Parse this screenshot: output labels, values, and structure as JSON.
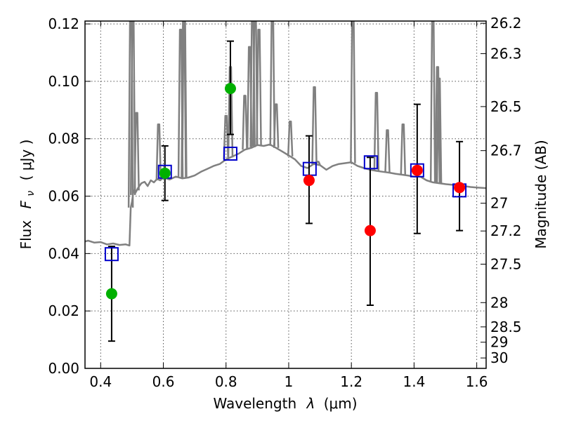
{
  "chart_data": {
    "type": "scatter",
    "xlabel_text": "Wavelength",
    "xlabel_lambda": "λ",
    "xlabel_unit": "(μm)",
    "ylabel_text": "Flux",
    "ylabel_f": "F",
    "ylabel_nu": "ν",
    "ylabel_unit": "( μJy )",
    "y2label": "Magnitude (AB)",
    "xlim": [
      0.35,
      1.63
    ],
    "ylim": [
      0.0,
      0.121
    ],
    "x_ticks": [
      "0.4",
      "0.6",
      "0.8",
      "1",
      "1.2",
      "1.4",
      "1.6"
    ],
    "y_ticks": [
      "0.00",
      "0.02",
      "0.04",
      "0.06",
      "0.08",
      "0.10",
      "0.12"
    ],
    "mag_ticks": [
      "26.2",
      "26.3",
      "26.5",
      "26.7",
      "27",
      "27.2",
      "27.5",
      "28",
      "28.5",
      "29",
      "30"
    ],
    "grid": true,
    "colors": {
      "model": "#808080",
      "observed_green": "#00b000",
      "observed_red": "#ff0000",
      "model_box": "#0000cc",
      "errorbar": "#000000"
    },
    "series": [
      {
        "name": "observed (green)",
        "x": [
          0.435,
          0.605,
          0.814
        ],
        "y": [
          0.026,
          0.068,
          0.0975
        ],
        "yerr_low": [
          0.0095,
          0.0585,
          0.0815
        ],
        "yerr_high": [
          0.0425,
          0.0775,
          0.114
        ]
      },
      {
        "name": "observed (red)",
        "x": [
          1.065,
          1.26,
          1.41,
          1.545
        ],
        "y": [
          0.0655,
          0.048,
          0.069,
          0.063
        ],
        "yerr_low": [
          0.0505,
          0.022,
          0.047,
          0.048
        ],
        "yerr_high": [
          0.081,
          0.0735,
          0.092,
          0.079
        ]
      },
      {
        "name": "model photometry",
        "x": [
          0.435,
          0.605,
          0.814,
          1.067,
          1.262,
          1.41,
          1.545
        ],
        "y": [
          0.0398,
          0.0685,
          0.0748,
          0.0695,
          0.0718,
          0.069,
          0.062
        ]
      },
      {
        "name": "model spectrum",
        "x": [
          0.35,
          0.36,
          0.38,
          0.4,
          0.42,
          0.44,
          0.46,
          0.48,
          0.492,
          0.496,
          0.5,
          0.505,
          0.51,
          0.52,
          0.53,
          0.54,
          0.55,
          0.56,
          0.57,
          0.58,
          0.59,
          0.6,
          0.62,
          0.64,
          0.66,
          0.68,
          0.7,
          0.72,
          0.74,
          0.76,
          0.78,
          0.8,
          0.82,
          0.84,
          0.86,
          0.88,
          0.9,
          0.92,
          0.94,
          0.96,
          0.98,
          1.0,
          1.02,
          1.04,
          1.06,
          1.08,
          1.1,
          1.12,
          1.14,
          1.16,
          1.18,
          1.2,
          1.22,
          1.24,
          1.26,
          1.28,
          1.3,
          1.32,
          1.34,
          1.36,
          1.38,
          1.4,
          1.42,
          1.44,
          1.46,
          1.48,
          1.5,
          1.52,
          1.54,
          1.56,
          1.58,
          1.6,
          1.63
        ],
        "y": [
          0.0442,
          0.0445,
          0.0438,
          0.044,
          0.0432,
          0.0435,
          0.043,
          0.0432,
          0.0428,
          0.056,
          0.058,
          0.062,
          0.061,
          0.063,
          0.0645,
          0.065,
          0.0635,
          0.0655,
          0.0648,
          0.066,
          0.0655,
          0.0665,
          0.0658,
          0.0668,
          0.0662,
          0.0665,
          0.0672,
          0.0685,
          0.0695,
          0.0705,
          0.0712,
          0.0728,
          0.0738,
          0.0748,
          0.0762,
          0.0768,
          0.0778,
          0.0775,
          0.078,
          0.0768,
          0.0755,
          0.0742,
          0.0728,
          0.0705,
          0.0698,
          0.0712,
          0.0708,
          0.0692,
          0.0705,
          0.0712,
          0.0715,
          0.0718,
          0.0705,
          0.0698,
          0.0692,
          0.0688,
          0.0685,
          0.0682,
          0.0678,
          0.0675,
          0.0672,
          0.0668,
          0.0668,
          0.0655,
          0.0648,
          0.0645,
          0.0642,
          0.064,
          0.0638,
          0.0635,
          0.0632,
          0.063,
          0.0628
        ]
      },
      {
        "name": "emission lines",
        "x": [
          0.496,
          0.503,
          0.515,
          0.585,
          0.655,
          0.665,
          0.667,
          0.8,
          0.814,
          0.86,
          0.875,
          0.885,
          0.893,
          0.905,
          0.948,
          0.96,
          1.005,
          1.082,
          1.093,
          1.205,
          1.28,
          1.315,
          1.365,
          1.46,
          1.475,
          1.48
        ],
        "y": [
          0.125,
          0.122,
          0.089,
          0.085,
          0.118,
          0.125,
          0.125,
          0.088,
          0.105,
          0.095,
          0.112,
          0.125,
          0.125,
          0.118,
          0.125,
          0.092,
          0.086,
          0.098,
          0.072,
          0.125,
          0.096,
          0.083,
          0.085,
          0.125,
          0.105,
          0.101
        ]
      }
    ]
  }
}
